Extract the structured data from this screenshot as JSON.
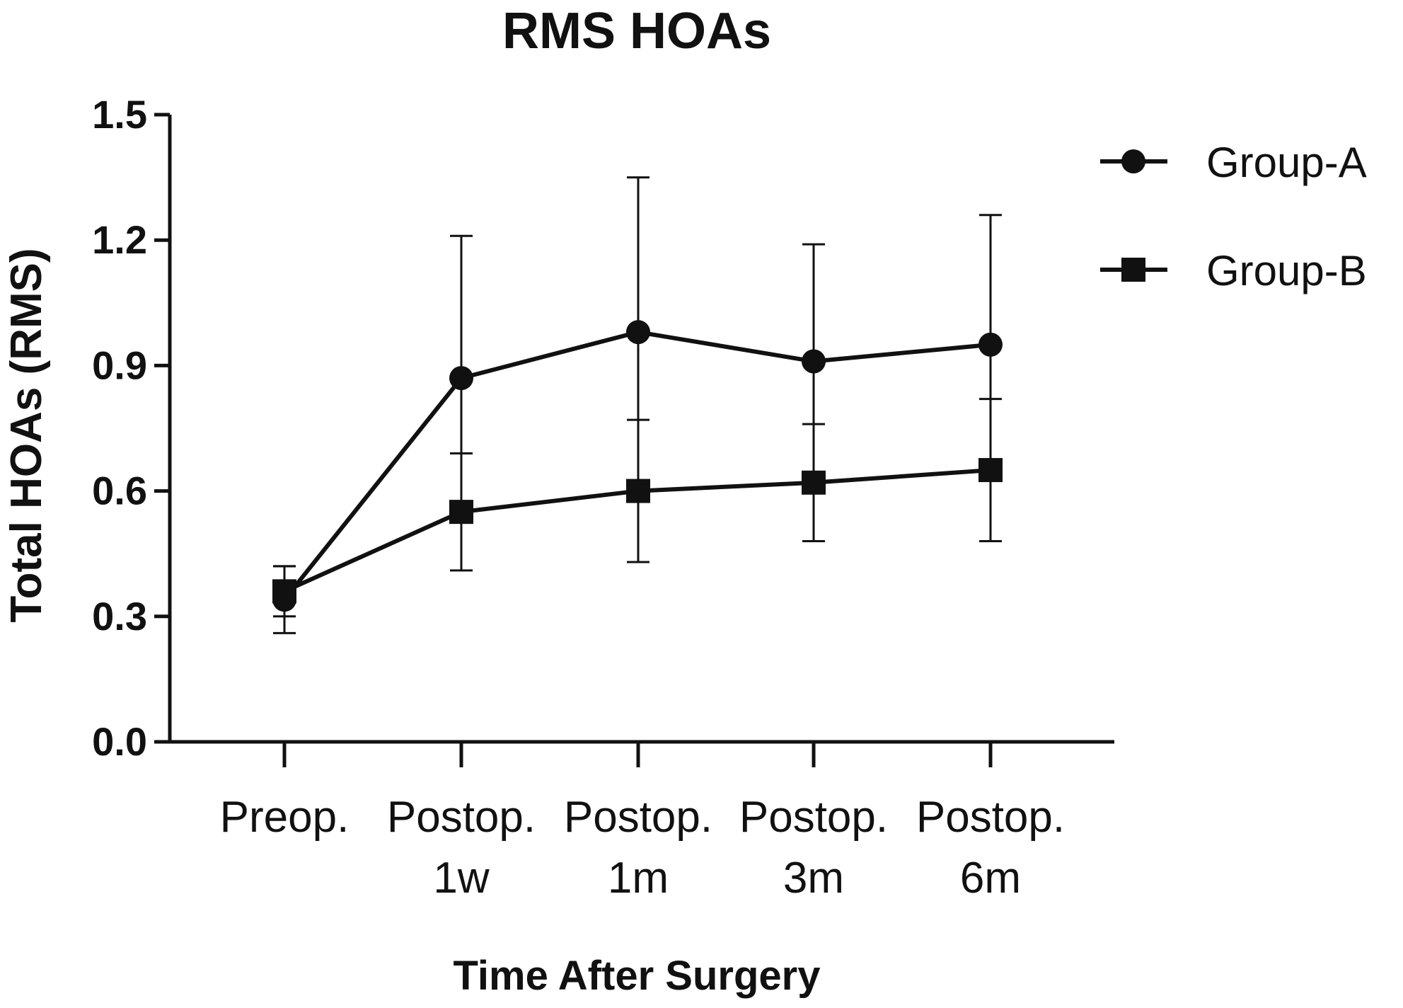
{
  "chart_data": {
    "type": "line",
    "title": "RMS HOAs",
    "xlabel": "Time After Surgery",
    "ylabel": "Total HOAs (RMS)",
    "categories": [
      [
        "Preop.",
        ""
      ],
      [
        "Postop.",
        "1w"
      ],
      [
        "Postop.",
        "1m"
      ],
      [
        "Postop.",
        "3m"
      ],
      [
        "Postop.",
        "6m"
      ]
    ],
    "ylim": [
      0,
      1.5
    ],
    "yticks": [
      "0.0",
      "0.3",
      "0.6",
      "0.9",
      "1.2",
      "1.5"
    ],
    "ytick_values": [
      0,
      0.3,
      0.6,
      0.9,
      1.2,
      1.5
    ],
    "grid": false,
    "legend_position": "top-right",
    "series": [
      {
        "name": "Group-A",
        "marker": "circle",
        "color": "#111111",
        "values": [
          0.34,
          0.87,
          0.98,
          0.91,
          0.95
        ],
        "error": [
          0.08,
          0.34,
          0.37,
          0.28,
          0.31
        ]
      },
      {
        "name": "Group-B",
        "marker": "square",
        "color": "#111111",
        "values": [
          0.36,
          0.55,
          0.6,
          0.62,
          0.65
        ],
        "error": [
          0.06,
          0.14,
          0.17,
          0.14,
          0.17
        ]
      }
    ]
  }
}
